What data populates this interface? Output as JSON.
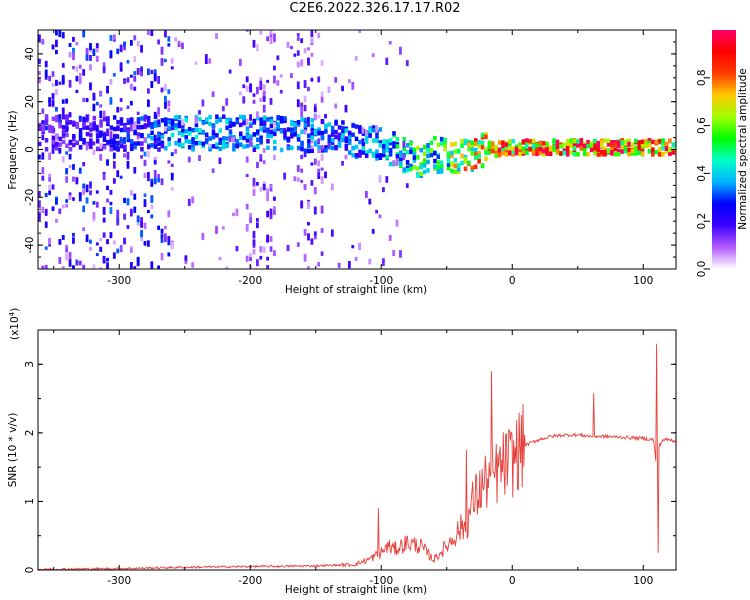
{
  "title": "C2E6.2022.326.17.17.R02",
  "chart_data": [
    {
      "type": "heatmap",
      "xlabel": "Height of straight line (km)",
      "ylabel": "Frequency (Hz)",
      "xlim": [
        -362,
        125
      ],
      "ylim": [
        -50,
        50
      ],
      "xticks": [
        -300,
        -200,
        -100,
        0,
        100
      ],
      "yticks": [
        -40,
        -20,
        0,
        20,
        40
      ],
      "colorbar": {
        "label": "Normalized spectral amplitude",
        "range": [
          0,
          1
        ],
        "ticks": [
          "0.0",
          "0.2",
          "0.4",
          "0.6",
          "0.8"
        ],
        "colors": [
          "#ffffff",
          "#b45cff",
          "#3c00ff",
          "#0000ff",
          "#00b4ff",
          "#00ffc8",
          "#00ff00",
          "#a0ff00",
          "#ffc800",
          "#ff3c00",
          "#ff0000",
          "#ff0064"
        ]
      },
      "ridge": {
        "x": [
          -360,
          -300,
          -250,
          -200,
          -150,
          -120,
          -100,
          -80,
          -70,
          -60,
          -50,
          -40,
          -30,
          -20,
          0,
          20,
          50,
          80,
          100,
          125
        ],
        "freq": [
          7,
          7,
          7,
          7,
          6,
          4,
          2,
          -3,
          -6,
          -2,
          -3,
          -3,
          -2,
          0,
          1,
          1,
          1,
          1,
          1,
          1
        ],
        "amplitude": [
          0.15,
          0.25,
          0.4,
          0.35,
          0.35,
          0.35,
          0.4,
          0.5,
          0.6,
          0.5,
          0.6,
          0.7,
          0.75,
          0.8,
          0.85,
          0.9,
          0.92,
          0.92,
          0.9,
          0.85
        ]
      }
    },
    {
      "type": "line",
      "xlabel": "Height of straight line (km)",
      "ylabel": "SNR (10 * v/v)",
      "multiplier": "(x10",
      "multiplier_exp": "4",
      "multiplier_close": ")",
      "xlim": [
        -362,
        125
      ],
      "ylim": [
        0,
        3.5
      ],
      "xticks": [
        -300,
        -200,
        -100,
        0,
        100
      ],
      "yticks": [
        0,
        1,
        2,
        3
      ],
      "color": "#e8403a",
      "series": {
        "x": [
          -362,
          -300,
          -250,
          -200,
          -150,
          -120,
          -110,
          -100,
          -95,
          -90,
          -80,
          -70,
          -60,
          -50,
          -40,
          -35,
          -30,
          -25,
          -20,
          -15,
          -10,
          -5,
          0,
          5,
          10,
          20,
          30,
          40,
          50,
          60,
          70,
          80,
          90,
          100,
          108,
          110,
          112,
          115,
          120,
          125
        ],
        "values": [
          0.01,
          0.02,
          0.04,
          0.05,
          0.06,
          0.08,
          0.15,
          0.25,
          0.35,
          0.3,
          0.4,
          0.35,
          0.15,
          0.35,
          0.6,
          0.65,
          1.0,
          1.15,
          1.3,
          1.35,
          1.45,
          1.55,
          1.6,
          1.75,
          1.82,
          1.9,
          1.95,
          1.97,
          1.97,
          1.95,
          1.95,
          1.94,
          1.93,
          1.92,
          1.9,
          1.5,
          1.8,
          1.9,
          1.9,
          1.88
        ]
      },
      "spikes": [
        {
          "x": -102,
          "value": 0.9
        },
        {
          "x": -35,
          "value": 1.75
        },
        {
          "x": -16,
          "value": 2.9
        },
        {
          "x": 62,
          "value": 2.58
        },
        {
          "x": 110,
          "value": 3.3
        },
        {
          "x": 111.5,
          "value": 0.25
        }
      ]
    }
  ]
}
